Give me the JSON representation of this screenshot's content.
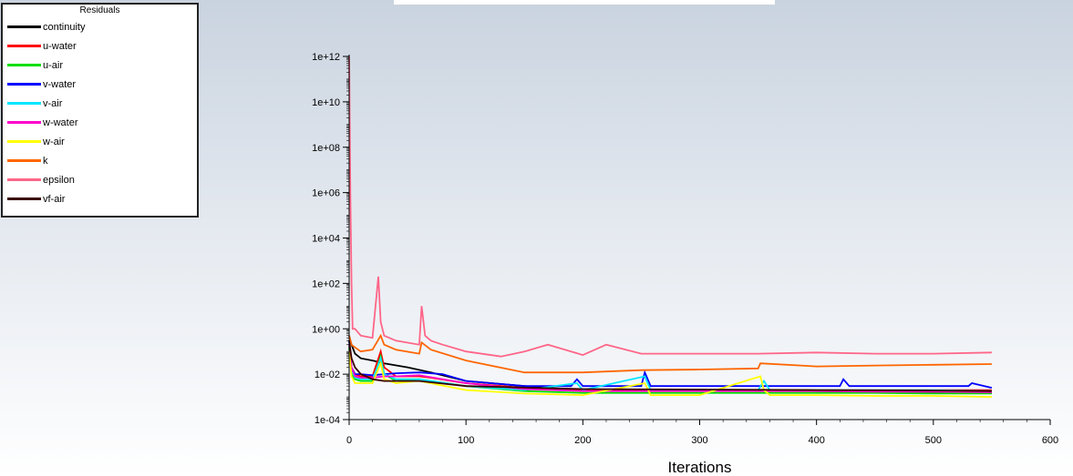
{
  "chart_data": {
    "type": "line",
    "title": "",
    "xlabel": "Iterations",
    "ylabel": "",
    "y_scale": "log",
    "xlim": [
      0,
      600
    ],
    "ylim": [
      0.0001,
      1000000000000
    ],
    "x_ticks": [
      0,
      100,
      200,
      300,
      400,
      500,
      600
    ],
    "x_tick_labels": [
      "0",
      "100",
      "200",
      "300",
      "400",
      "500",
      "600"
    ],
    "y_ticks": [
      0.0001,
      0.01,
      1,
      100,
      10000,
      1000000,
      100000000,
      10000000000,
      1000000000000
    ],
    "y_tick_labels": [
      "1e-04",
      "1e-02",
      "1e+00",
      "1e+02",
      "1e+04",
      "1e+06",
      "1e+08",
      "1e+10",
      "1e+12"
    ],
    "grid": false,
    "legend_position": "top-left",
    "legend_title": "Residuals",
    "series": [
      {
        "name": "continuity",
        "color": "#000000",
        "x": [
          0,
          2,
          5,
          10,
          20,
          30,
          50,
          70,
          100,
          150,
          200,
          300,
          400,
          500,
          550
        ],
        "y": [
          0.5,
          0.2,
          0.08,
          0.05,
          0.04,
          0.03,
          0.02,
          0.012,
          0.005,
          0.003,
          0.002,
          0.002,
          0.0018,
          0.0016,
          0.0015
        ]
      },
      {
        "name": "u-water",
        "color": "#ff0000",
        "x": [
          0,
          2,
          5,
          10,
          20,
          27,
          30,
          40,
          60,
          70,
          100,
          150,
          200,
          250,
          300,
          350,
          400,
          450,
          500,
          550
        ],
        "y": [
          0.2,
          0.02,
          0.01,
          0.008,
          0.008,
          0.1,
          0.02,
          0.008,
          0.008,
          0.007,
          0.004,
          0.0025,
          0.002,
          0.002,
          0.002,
          0.002,
          0.002,
          0.002,
          0.002,
          0.002
        ]
      },
      {
        "name": "u-air",
        "color": "#00dd00",
        "x": [
          0,
          2,
          5,
          10,
          20,
          27,
          30,
          40,
          60,
          70,
          100,
          150,
          200,
          250,
          300,
          350,
          400,
          450,
          500,
          550
        ],
        "y": [
          0.15,
          0.01,
          0.006,
          0.005,
          0.005,
          0.06,
          0.01,
          0.005,
          0.006,
          0.005,
          0.003,
          0.0018,
          0.0015,
          0.0015,
          0.0015,
          0.0015,
          0.0015,
          0.0015,
          0.0014,
          0.0014
        ]
      },
      {
        "name": "v-water",
        "color": "#0000ff",
        "x": [
          0,
          2,
          5,
          10,
          20,
          30,
          40,
          60,
          80,
          100,
          150,
          190,
          195,
          200,
          250,
          253,
          258,
          300,
          350,
          400,
          420,
          423,
          428,
          500,
          530,
          533,
          550
        ],
        "y": [
          0.3,
          0.02,
          0.01,
          0.01,
          0.009,
          0.01,
          0.011,
          0.012,
          0.01,
          0.005,
          0.003,
          0.003,
          0.006,
          0.003,
          0.003,
          0.012,
          0.003,
          0.003,
          0.003,
          0.003,
          0.003,
          0.006,
          0.003,
          0.003,
          0.003,
          0.004,
          0.0025
        ]
      },
      {
        "name": "v-air",
        "color": "#00e5ff",
        "x": [
          0,
          2,
          5,
          10,
          20,
          27,
          30,
          40,
          60,
          100,
          150,
          195,
          200,
          253,
          258,
          300,
          350,
          355,
          360,
          400,
          500,
          550
        ],
        "y": [
          0.2,
          0.015,
          0.007,
          0.006,
          0.006,
          0.05,
          0.01,
          0.006,
          0.006,
          0.003,
          0.002,
          0.004,
          0.002,
          0.008,
          0.002,
          0.002,
          0.002,
          0.005,
          0.002,
          0.002,
          0.002,
          0.0018
        ]
      },
      {
        "name": "w-water",
        "color": "#ff00cc",
        "x": [
          0,
          2,
          5,
          10,
          20,
          30,
          40,
          60,
          100,
          150,
          200,
          250,
          300,
          350,
          400,
          450,
          500,
          550
        ],
        "y": [
          0.2,
          0.02,
          0.008,
          0.007,
          0.007,
          0.008,
          0.008,
          0.009,
          0.004,
          0.0022,
          0.0018,
          0.0018,
          0.0018,
          0.0018,
          0.0018,
          0.0017,
          0.0017,
          0.0016
        ]
      },
      {
        "name": "w-air",
        "color": "#ffff00",
        "x": [
          0,
          2,
          5,
          10,
          20,
          27,
          30,
          40,
          60,
          100,
          150,
          200,
          253,
          258,
          300,
          352,
          355,
          360,
          400,
          450,
          500,
          550
        ],
        "y": [
          0.1,
          0.008,
          0.004,
          0.004,
          0.004,
          0.03,
          0.006,
          0.004,
          0.005,
          0.002,
          0.0014,
          0.0012,
          0.004,
          0.0012,
          0.0012,
          0.008,
          0.002,
          0.0012,
          0.0012,
          0.0011,
          0.0011,
          0.001
        ]
      },
      {
        "name": "k",
        "color": "#ff6600",
        "x": [
          0,
          2,
          5,
          10,
          20,
          27,
          30,
          40,
          60,
          62,
          70,
          100,
          150,
          200,
          250,
          300,
          350,
          352,
          400,
          450,
          500,
          550
        ],
        "y": [
          0.5,
          0.2,
          0.15,
          0.1,
          0.12,
          0.5,
          0.2,
          0.12,
          0.08,
          0.25,
          0.12,
          0.04,
          0.012,
          0.012,
          0.015,
          0.016,
          0.018,
          0.03,
          0.022,
          0.024,
          0.026,
          0.028
        ]
      },
      {
        "name": "epsilon",
        "color": "#ff6688",
        "x": [
          0,
          1,
          2,
          3,
          5,
          10,
          20,
          25,
          27,
          30,
          40,
          60,
          62,
          65,
          70,
          80,
          100,
          130,
          150,
          170,
          190,
          200,
          220,
          250,
          300,
          350,
          400,
          450,
          500,
          550
        ],
        "y": [
          1000000000000,
          1000000,
          100,
          1,
          1,
          0.5,
          0.4,
          200,
          2,
          0.5,
          0.3,
          0.2,
          10,
          0.5,
          0.3,
          0.2,
          0.1,
          0.06,
          0.1,
          0.2,
          0.1,
          0.07,
          0.2,
          0.08,
          0.08,
          0.08,
          0.09,
          0.08,
          0.08,
          0.09
        ]
      },
      {
        "name": "vf-air",
        "color": "#3a0000",
        "x": [
          0,
          2,
          5,
          10,
          20,
          30,
          60,
          100,
          200,
          300,
          400,
          500,
          550
        ],
        "y": [
          0.3,
          0.05,
          0.02,
          0.01,
          0.006,
          0.005,
          0.005,
          0.003,
          0.0022,
          0.0021,
          0.002,
          0.0019,
          0.0018
        ]
      }
    ]
  }
}
